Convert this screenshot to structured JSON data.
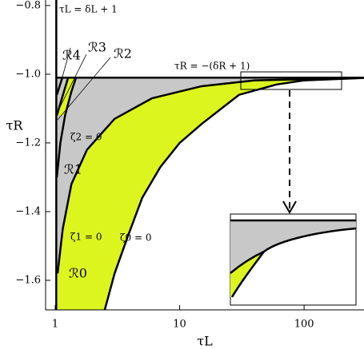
{
  "chart_data": {
    "type": "line",
    "xlabel": "τL",
    "ylabel": "τR",
    "xlog": true,
    "xlim": [
      0.837,
      303
    ],
    "ylim": [
      -1.686,
      -0.784
    ],
    "xticks": [
      1,
      10,
      100
    ],
    "yticks": [
      {
        "value": -0.8,
        "label": "−0.8"
      },
      {
        "value": -1.0,
        "label": "−1.0"
      },
      {
        "value": -1.2,
        "label": "−1.2"
      },
      {
        "value": -1.4,
        "label": "−1.4"
      },
      {
        "value": -1.6,
        "label": "−1.6"
      }
    ],
    "hline": -1.01,
    "vline": 1.02,
    "fill_gray": "#c8c8c8",
    "fill_yellow": "#dcf51e",
    "series": [
      {
        "color": "#000000",
        "x": [
          1.045,
          1.15,
          1.35,
          1.8,
          3,
          6,
          15,
          40,
          300
        ],
        "values": [
          -1.58,
          -1.45,
          -1.32,
          -1.22,
          -1.13,
          -1.07,
          -1.035,
          -1.018,
          -1.011
        ]
      },
      {
        "color": "#000000",
        "x": [
          2.5,
          3,
          3.85,
          5,
          7,
          10,
          15,
          30,
          60,
          100,
          300
        ],
        "values": [
          -1.686,
          -1.58,
          -1.47,
          -1.36,
          -1.27,
          -1.2,
          -1.145,
          -1.06,
          -1.03,
          -1.018,
          -1.011
        ]
      },
      {
        "color": "#000000",
        "x": [
          1.03,
          1.1,
          1.2,
          1.35,
          1.47
        ],
        "values": [
          -1.3,
          -1.2,
          -1.12,
          -1.05,
          -1.01
        ]
      },
      {
        "color": "#000000",
        "x": [
          1.03,
          1.27
        ],
        "values": [
          -1.12,
          -1.01
        ]
      },
      {
        "color": "#000000",
        "x": [
          1.03,
          1.14
        ],
        "values": [
          -1.06,
          -1.01
        ]
      }
    ],
    "annotations": [
      "τL = δL + 1",
      "τR = −(δR + 1)",
      "ℛ4",
      "ℛ3",
      "ℛ2",
      "ℛ1",
      "ℛ0",
      "ζ2 = 0",
      "ζ1 = 0",
      "ζ0 = 0"
    ]
  }
}
